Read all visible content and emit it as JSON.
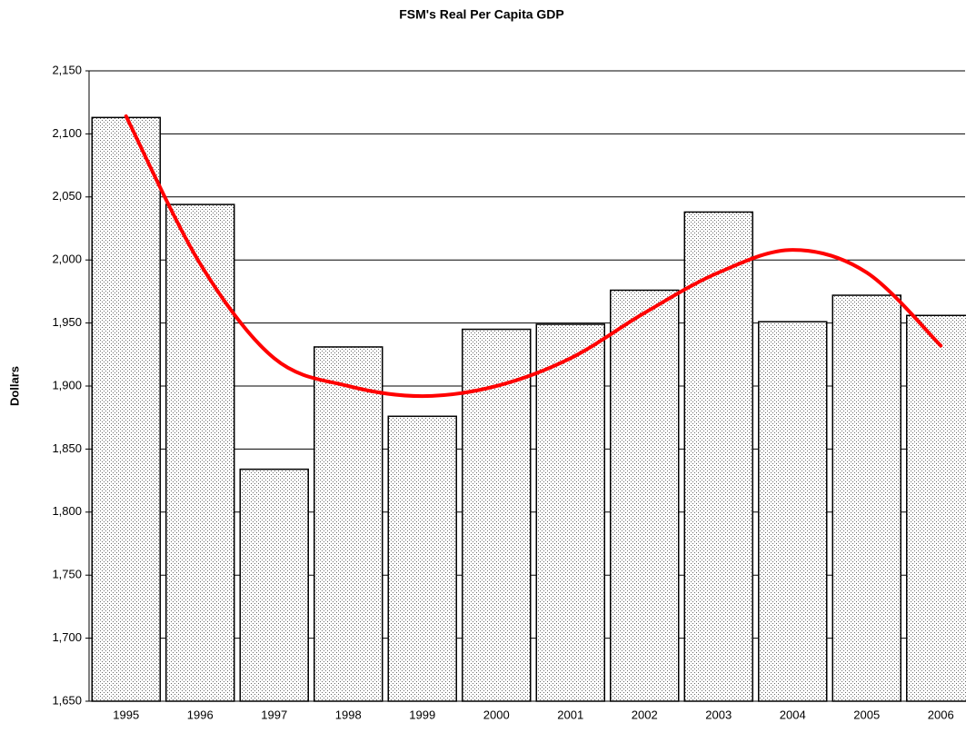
{
  "chart_data": {
    "type": "bar",
    "title": "FSM's Real Per Capita GDP",
    "y_label": "Dollars",
    "categories": [
      "1995",
      "1996",
      "1997",
      "1998",
      "1999",
      "2000",
      "2001",
      "2002",
      "2003",
      "2004",
      "2005",
      "2006"
    ],
    "values": [
      2113,
      2044,
      1834,
      1931,
      1876,
      1945,
      1949,
      1976,
      2038,
      1951,
      1972,
      1956
    ],
    "trendline": {
      "color": "#ff0000",
      "values": [
        2114,
        1997,
        1922,
        1900,
        1892,
        1900,
        1922,
        1958,
        1990,
        2008,
        1990,
        1932
      ]
    },
    "ylim": [
      1650,
      2150
    ],
    "yticks": [
      {
        "value": 1650,
        "label": "1,650"
      },
      {
        "value": 1700,
        "label": "1,700"
      },
      {
        "value": 1750,
        "label": "1,750"
      },
      {
        "value": 1800,
        "label": "1,800"
      },
      {
        "value": 1850,
        "label": "1,850"
      },
      {
        "value": 1900,
        "label": "1,900"
      },
      {
        "value": 1950,
        "label": "1,950"
      },
      {
        "value": 2000,
        "label": "2,000"
      },
      {
        "value": 2050,
        "label": "2,050"
      },
      {
        "value": 2100,
        "label": "2,100"
      },
      {
        "value": 2150,
        "label": "2,150"
      }
    ],
    "grid": true
  }
}
